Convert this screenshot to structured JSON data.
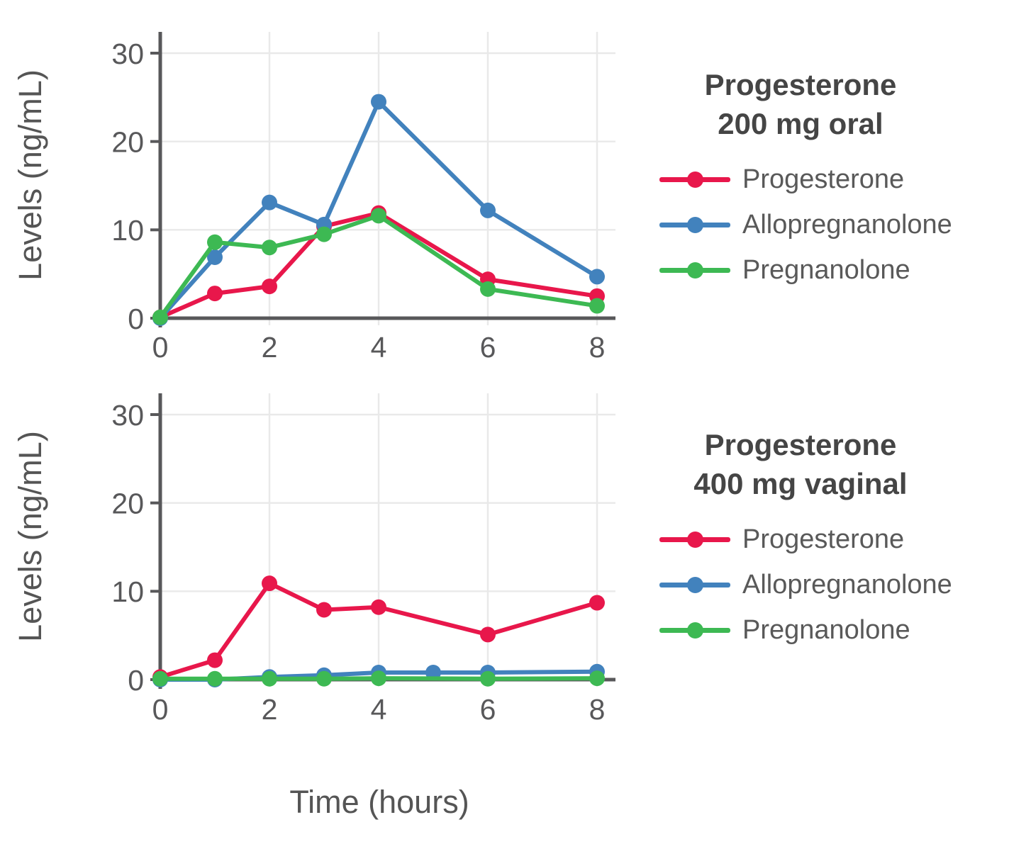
{
  "figure": {
    "x_axis_label": "Time (hours)",
    "y_axis_label": "Levels (ng/mL)",
    "background": "#ffffff",
    "axis_color": "#58585a",
    "grid_color": "#e9e9e9",
    "tick_label_color": "#58585a",
    "axis_title_color": "#555555"
  },
  "chart_data": [
    {
      "type": "line",
      "panel": "top",
      "title": "Progesterone\n200 mg oral",
      "xlabel": "Time (hours)",
      "ylabel": "Levels (ng/mL)",
      "x_ticks": [
        0,
        2,
        4,
        6,
        8
      ],
      "y_ticks": [
        0,
        10,
        20,
        30
      ],
      "xlim": [
        0,
        8.34
      ],
      "ylim": [
        0,
        32.4
      ],
      "grid": true,
      "legend_position": "right",
      "series": [
        {
          "name": "Progesterone",
          "color": "#e8174b",
          "x": [
            0,
            1,
            2,
            3,
            4,
            6,
            8
          ],
          "y": [
            0.1,
            2.8,
            3.6,
            10.4,
            11.9,
            4.4,
            2.5
          ]
        },
        {
          "name": "Allopregnanolone",
          "color": "#4282bd",
          "x": [
            0,
            1,
            2,
            3,
            4,
            6,
            8
          ],
          "y": [
            0,
            6.9,
            13.1,
            10.6,
            24.5,
            12.2,
            4.7
          ]
        },
        {
          "name": "Pregnanolone",
          "color": "#3db953",
          "x": [
            0,
            1,
            2,
            3,
            4,
            6,
            8
          ],
          "y": [
            0.1,
            8.6,
            8.0,
            9.5,
            11.6,
            3.3,
            1.4
          ]
        }
      ]
    },
    {
      "type": "line",
      "panel": "bottom",
      "title": "Progesterone\n400 mg vaginal",
      "xlabel": "Time (hours)",
      "ylabel": "Levels (ng/mL)",
      "x_ticks": [
        0,
        2,
        4,
        6,
        8
      ],
      "y_ticks": [
        0,
        10,
        20,
        30
      ],
      "xlim": [
        0,
        8.34
      ],
      "ylim": [
        0,
        32.4
      ],
      "grid": true,
      "legend_position": "right",
      "series": [
        {
          "name": "Progesterone",
          "color": "#e8174b",
          "x": [
            0,
            1,
            2,
            3,
            4,
            6,
            8
          ],
          "y": [
            0.3,
            2.2,
            10.9,
            7.9,
            8.2,
            5.1,
            8.7
          ]
        },
        {
          "name": "Allopregnanolone",
          "color": "#4282bd",
          "x": [
            0,
            1,
            2,
            3,
            4,
            5,
            6,
            8
          ],
          "y": [
            0,
            0,
            0.3,
            0.5,
            0.8,
            0.8,
            0.8,
            0.9
          ]
        },
        {
          "name": "Pregnanolone",
          "color": "#3db953",
          "x": [
            0,
            1,
            2,
            3,
            4,
            6,
            8
          ],
          "y": [
            0.1,
            0.1,
            0.1,
            0.1,
            0.15,
            0.1,
            0.15
          ]
        }
      ]
    }
  ]
}
